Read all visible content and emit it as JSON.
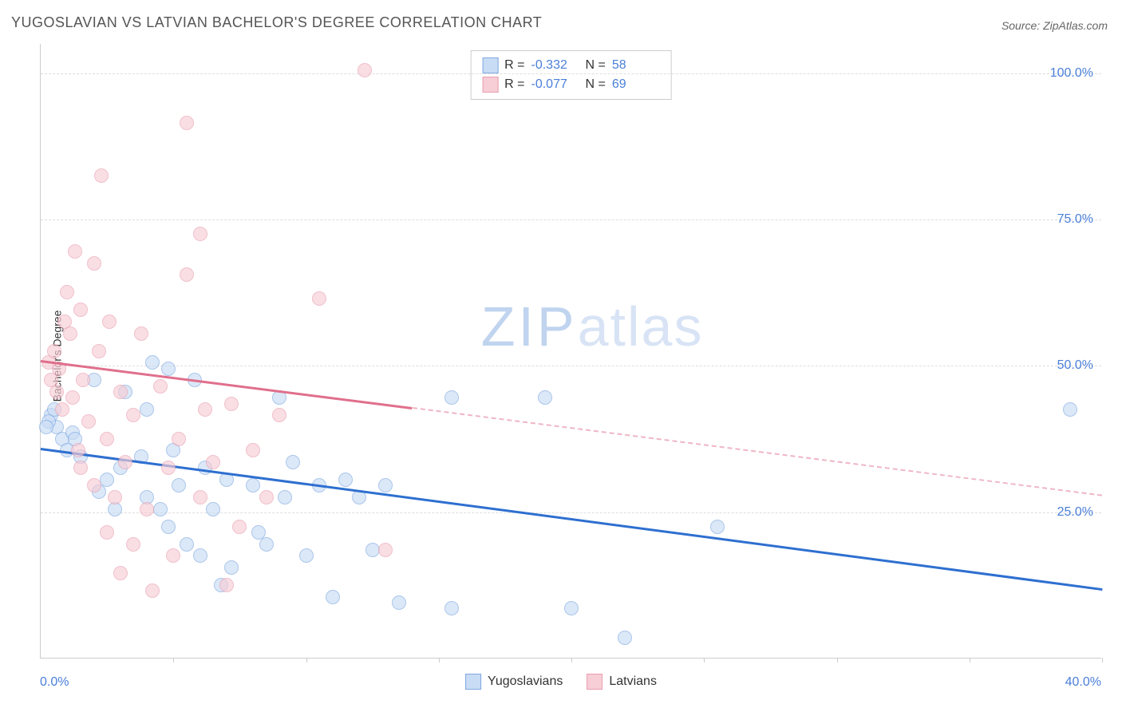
{
  "title": "YUGOSLAVIAN VS LATVIAN BACHELOR'S DEGREE CORRELATION CHART",
  "source": "Source: ZipAtlas.com",
  "y_axis_label": "Bachelor's Degree",
  "watermark": {
    "zip": "ZIP",
    "atlas": "atlas"
  },
  "chart": {
    "type": "scatter",
    "xlim": [
      0,
      40
    ],
    "ylim": [
      0,
      105
    ],
    "x_tick_labels": {
      "min": "0.0%",
      "max": "40.0%"
    },
    "x_minor_ticks": [
      5,
      10,
      15,
      20,
      25,
      30,
      35,
      40
    ],
    "y_ticks": [
      {
        "v": 25,
        "label": "25.0%"
      },
      {
        "v": 50,
        "label": "50.0%"
      },
      {
        "v": 75,
        "label": "75.0%"
      },
      {
        "v": 100,
        "label": "100.0%"
      }
    ],
    "grid_color": "#dddddd",
    "background_color": "#ffffff",
    "series": [
      {
        "name": "Yugoslavians",
        "fill": "#c9dcf5",
        "stroke": "#7fa8e0",
        "marker_radius": 9,
        "fill_opacity": 0.65,
        "trend": {
          "color": "#2e6fd0",
          "width": 2.5,
          "x0": 0,
          "y0": 36,
          "x1": 40,
          "y1": 12,
          "solid_until_x": 40
        },
        "points": [
          [
            0.4,
            44
          ],
          [
            0.6,
            42
          ],
          [
            0.5,
            45
          ],
          [
            0.3,
            43
          ],
          [
            0.8,
            40
          ],
          [
            0.2,
            42
          ],
          [
            1.0,
            38
          ],
          [
            1.2,
            41
          ],
          [
            1.5,
            37
          ],
          [
            1.3,
            40
          ],
          [
            2.0,
            50
          ],
          [
            2.2,
            31
          ],
          [
            2.5,
            33
          ],
          [
            2.8,
            28
          ],
          [
            3.0,
            35
          ],
          [
            3.2,
            48
          ],
          [
            3.8,
            37
          ],
          [
            4.0,
            45
          ],
          [
            4.0,
            30
          ],
          [
            4.2,
            53
          ],
          [
            4.5,
            28
          ],
          [
            4.8,
            52
          ],
          [
            4.8,
            25
          ],
          [
            5.0,
            38
          ],
          [
            5.2,
            32
          ],
          [
            5.5,
            22
          ],
          [
            5.8,
            50
          ],
          [
            6.0,
            20
          ],
          [
            6.2,
            35
          ],
          [
            6.5,
            28
          ],
          [
            6.8,
            15
          ],
          [
            7.0,
            33
          ],
          [
            7.2,
            18
          ],
          [
            8.0,
            32
          ],
          [
            8.2,
            24
          ],
          [
            8.5,
            22
          ],
          [
            9.0,
            47
          ],
          [
            9.2,
            30
          ],
          [
            9.5,
            36
          ],
          [
            10.0,
            20
          ],
          [
            10.5,
            32
          ],
          [
            11.0,
            13
          ],
          [
            11.5,
            33
          ],
          [
            12.0,
            30
          ],
          [
            12.5,
            21
          ],
          [
            13.0,
            32
          ],
          [
            13.5,
            12
          ],
          [
            15.5,
            11
          ],
          [
            15.5,
            47
          ],
          [
            19.0,
            47
          ],
          [
            20.0,
            11
          ],
          [
            22.0,
            6
          ],
          [
            25.5,
            25
          ],
          [
            38.8,
            45
          ]
        ]
      },
      {
        "name": "Latvians",
        "fill": "#f7cdd6",
        "stroke": "#e99fb0",
        "marker_radius": 9,
        "fill_opacity": 0.65,
        "trend": {
          "color": "#e06f8c",
          "width": 2.5,
          "x0": 0,
          "y0": 51,
          "x1": 40,
          "y1": 28,
          "solid_until_x": 14
        },
        "points": [
          [
            0.3,
            53
          ],
          [
            0.4,
            50
          ],
          [
            0.5,
            55
          ],
          [
            0.6,
            48
          ],
          [
            0.7,
            52
          ],
          [
            0.8,
            45
          ],
          [
            0.9,
            60
          ],
          [
            1.0,
            65
          ],
          [
            1.1,
            58
          ],
          [
            1.2,
            47
          ],
          [
            1.3,
            72
          ],
          [
            1.4,
            38
          ],
          [
            1.5,
            62
          ],
          [
            1.5,
            35
          ],
          [
            1.6,
            50
          ],
          [
            1.8,
            43
          ],
          [
            2.0,
            70
          ],
          [
            2.0,
            32
          ],
          [
            2.2,
            55
          ],
          [
            2.3,
            85
          ],
          [
            2.5,
            40
          ],
          [
            2.5,
            24
          ],
          [
            2.6,
            60
          ],
          [
            2.8,
            30
          ],
          [
            3.0,
            48
          ],
          [
            3.0,
            17
          ],
          [
            3.2,
            36
          ],
          [
            3.5,
            44
          ],
          [
            3.5,
            22
          ],
          [
            3.8,
            58
          ],
          [
            4.0,
            28
          ],
          [
            4.2,
            14
          ],
          [
            4.5,
            49
          ],
          [
            4.8,
            35
          ],
          [
            5.0,
            20
          ],
          [
            5.2,
            40
          ],
          [
            5.5,
            68
          ],
          [
            5.5,
            94
          ],
          [
            6.0,
            75
          ],
          [
            6.0,
            30
          ],
          [
            6.2,
            45
          ],
          [
            6.5,
            36
          ],
          [
            7.0,
            15
          ],
          [
            7.2,
            46
          ],
          [
            7.5,
            25
          ],
          [
            8.0,
            38
          ],
          [
            8.5,
            30
          ],
          [
            9.0,
            44
          ],
          [
            10.5,
            64
          ],
          [
            12.2,
            103
          ],
          [
            13.0,
            21
          ]
        ]
      }
    ]
  },
  "stats_box": {
    "rows": [
      {
        "swatch_fill": "#c9dcf5",
        "swatch_stroke": "#7fa8e0",
        "r_label": "R =",
        "r": "-0.332",
        "n_label": "N =",
        "n": "58"
      },
      {
        "swatch_fill": "#f7cdd6",
        "swatch_stroke": "#e99fb0",
        "r_label": "R =",
        "r": "-0.077",
        "n_label": "N =",
        "n": "69"
      }
    ]
  },
  "bottom_legend": [
    {
      "swatch_fill": "#c9dcf5",
      "swatch_stroke": "#7fa8e0",
      "label": "Yugoslavians"
    },
    {
      "swatch_fill": "#f7cdd6",
      "swatch_stroke": "#e99fb0",
      "label": "Latvians"
    }
  ]
}
